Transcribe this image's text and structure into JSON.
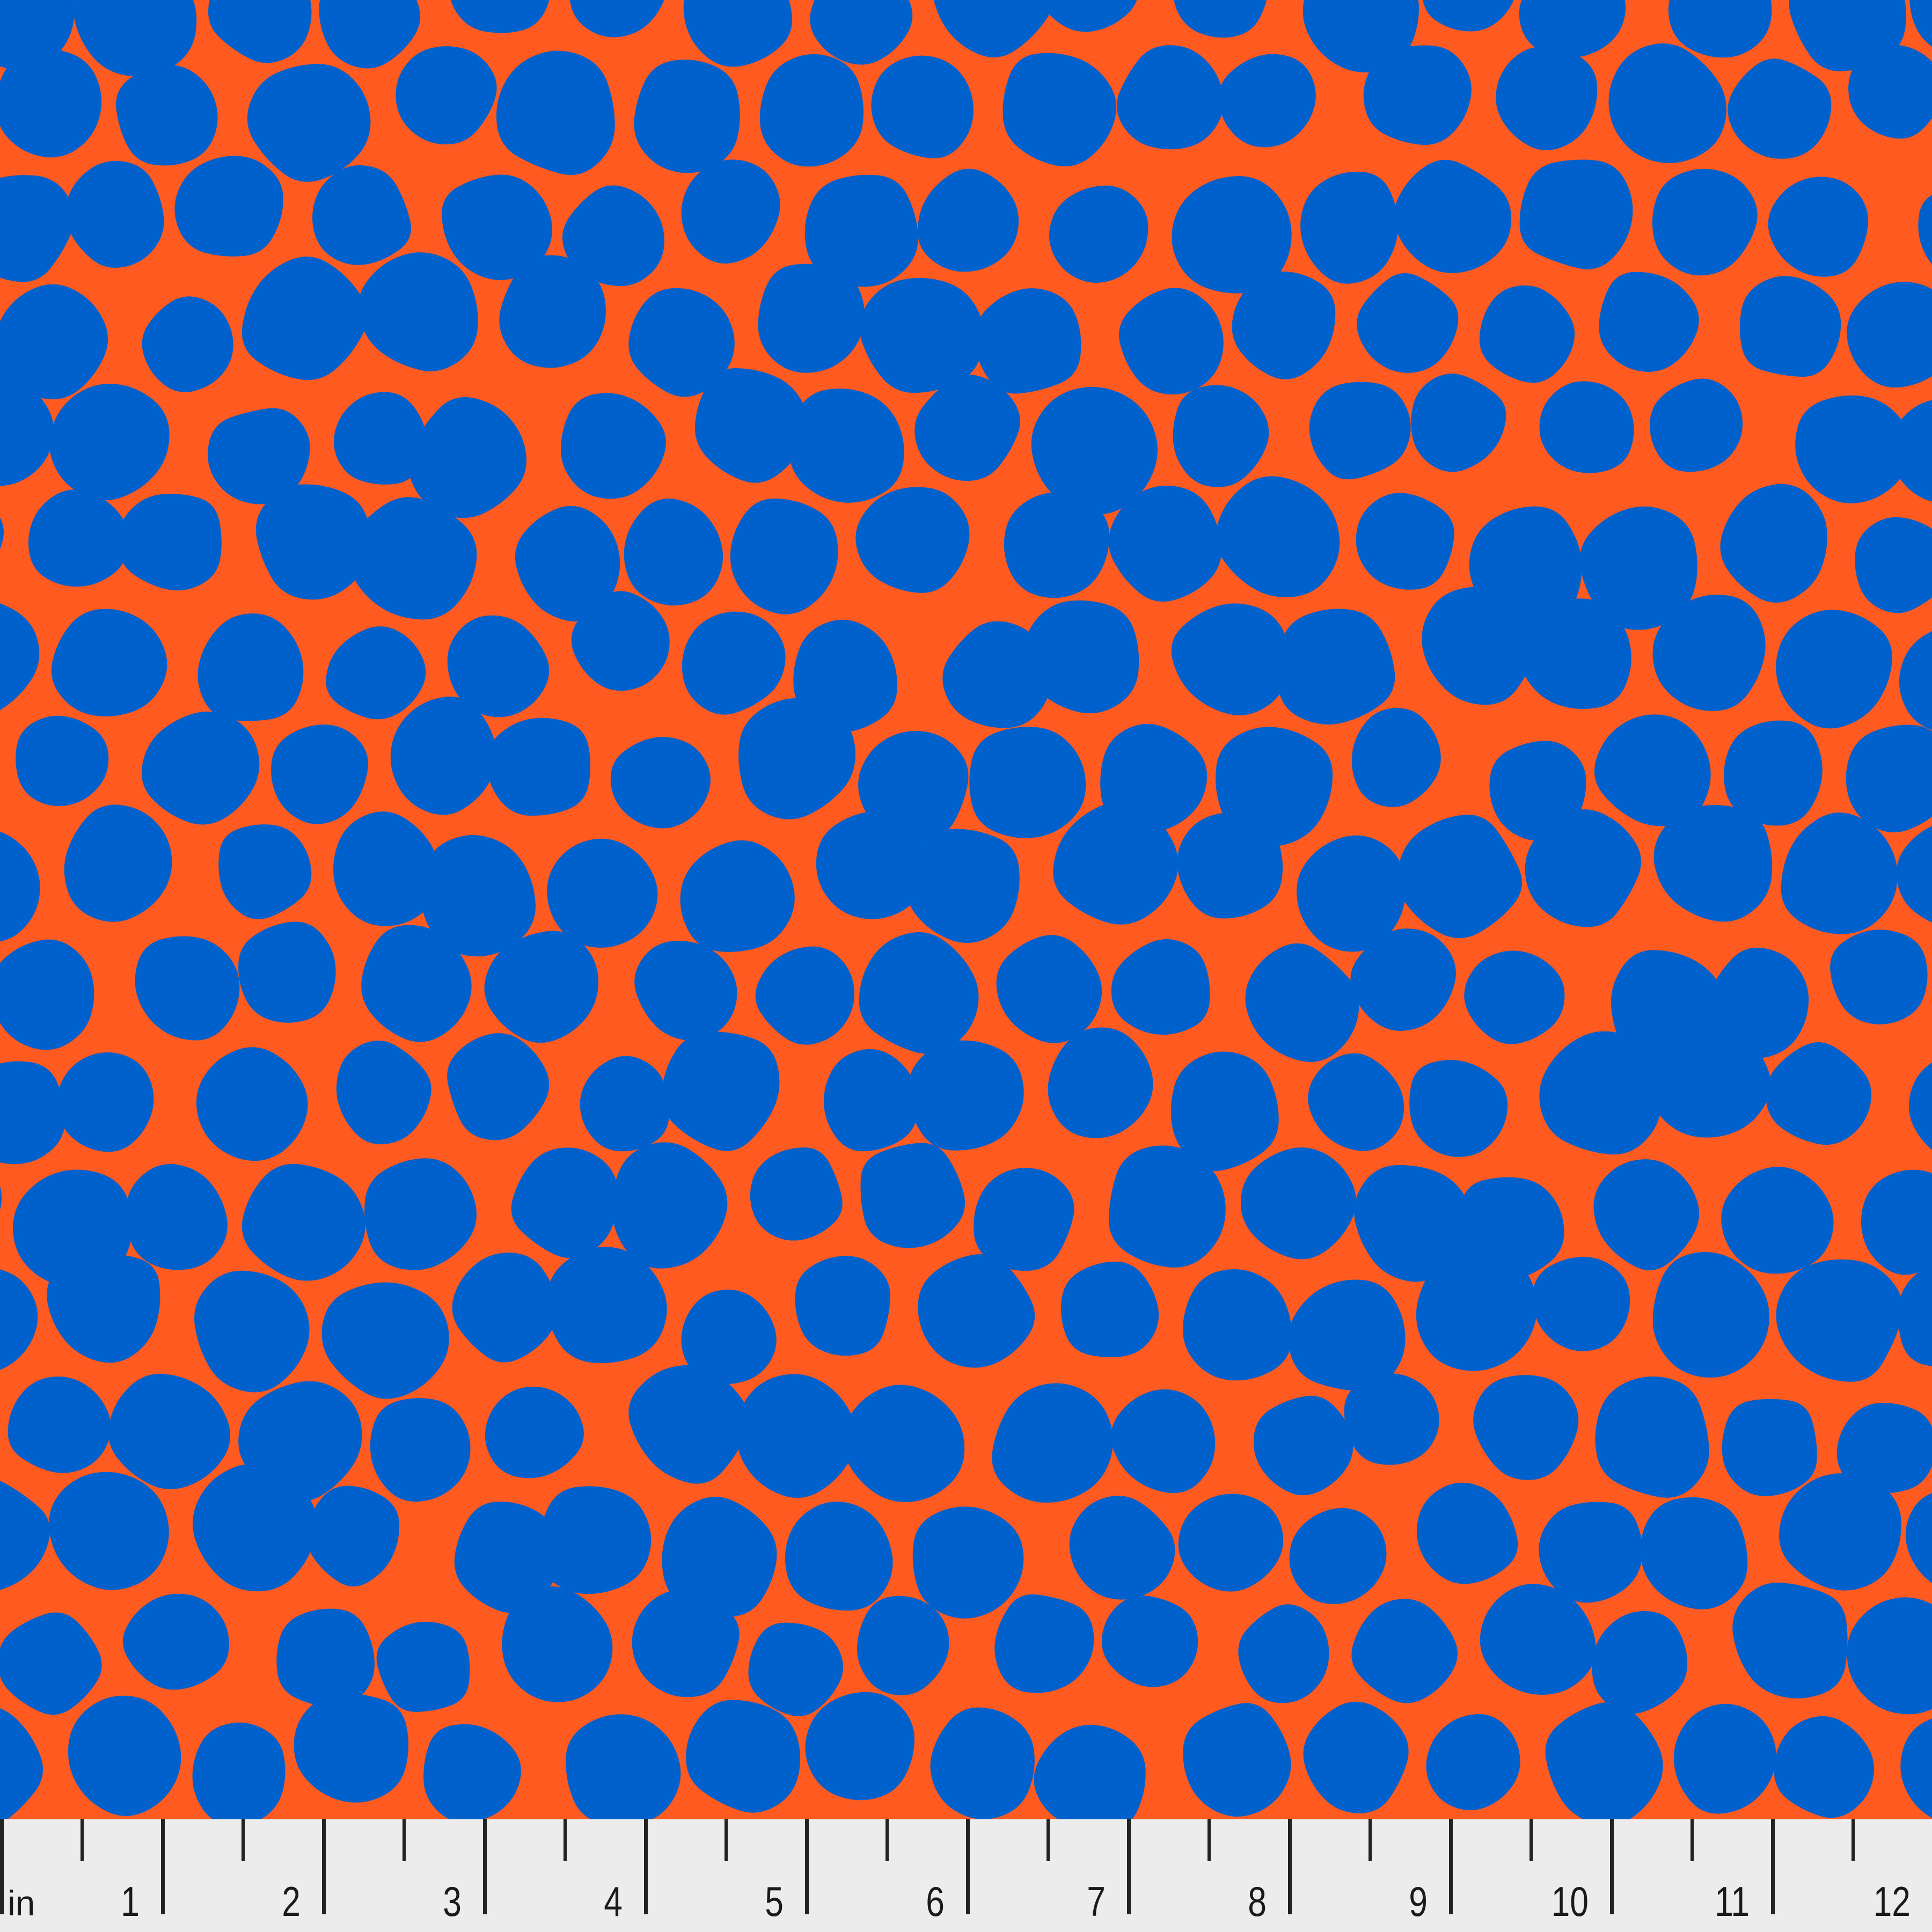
{
  "swatch": {
    "colors": {
      "background": "#FF5A1F",
      "blob": "#0060CC",
      "ruler_bg": "#ECECEC",
      "ruler_ink": "#222222"
    },
    "pattern": "irregular blue blobs on orange"
  },
  "ruler": {
    "unit": "in",
    "labels": [
      "1",
      "2",
      "3",
      "4",
      "5",
      "6",
      "7",
      "8",
      "9",
      "10",
      "11",
      "12"
    ]
  }
}
